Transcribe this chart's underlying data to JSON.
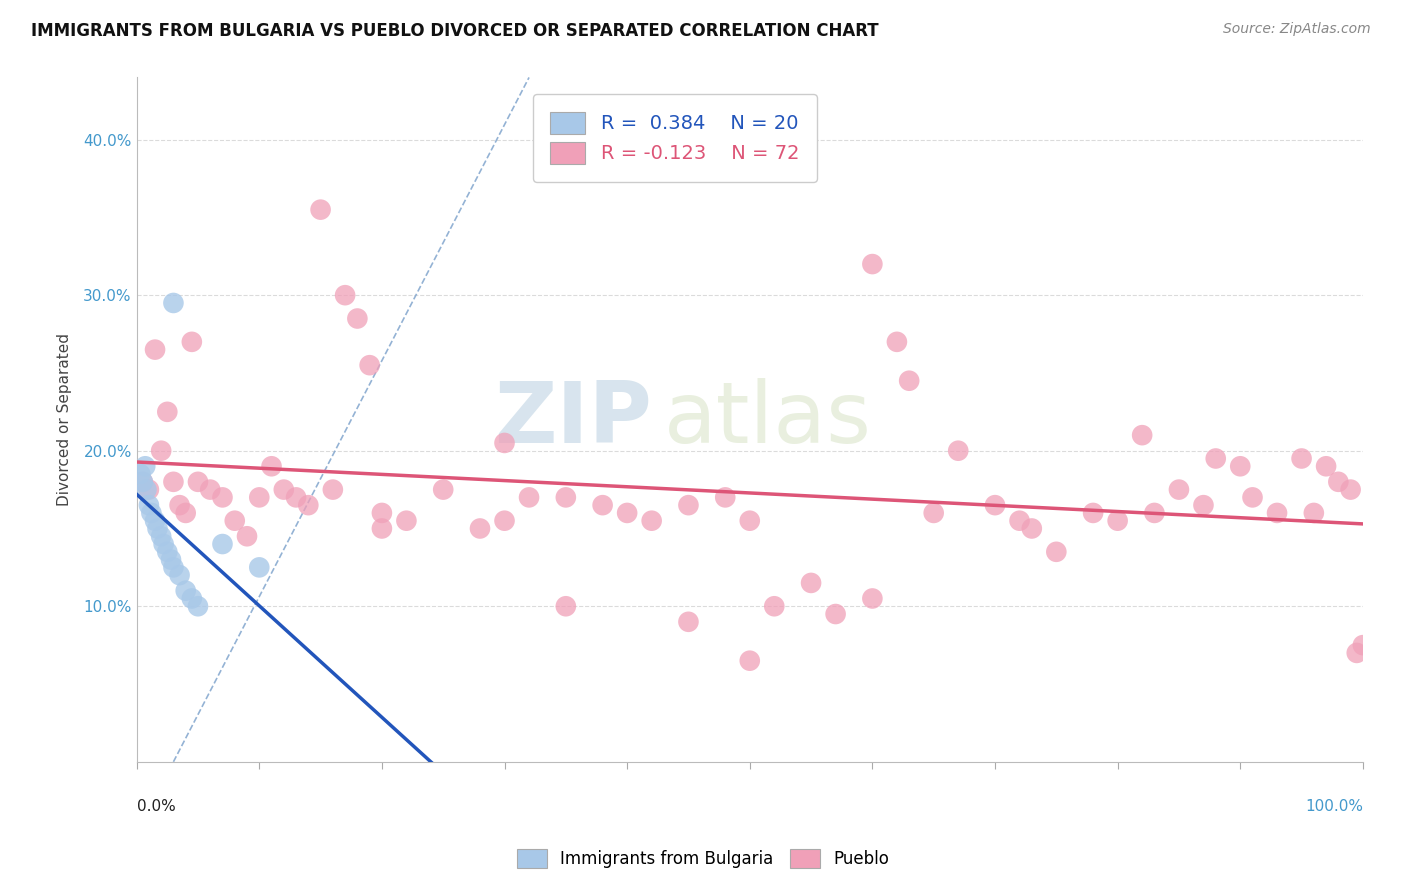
{
  "title": "IMMIGRANTS FROM BULGARIA VS PUEBLO DIVORCED OR SEPARATED CORRELATION CHART",
  "source_text": "Source: ZipAtlas.com",
  "ylabel": "Divorced or Separated",
  "legend_label1": "Immigrants from Bulgaria",
  "legend_label2": "Pueblo",
  "r1": 0.384,
  "n1": 20,
  "r2": -0.123,
  "n2": 72,
  "blue_color": "#a8c8e8",
  "pink_color": "#f0a0b8",
  "blue_line_color": "#2255bb",
  "pink_line_color": "#dd5577",
  "diag_line_color": "#88aad0",
  "bg_color": "#ffffff",
  "grid_color": "#cccccc",
  "watermark_zip": "ZIP",
  "watermark_atlas": "atlas",
  "xlim": [
    0,
    100
  ],
  "ylim": [
    0,
    44
  ],
  "y_ticks": [
    10,
    20,
    30,
    40
  ],
  "blue_points": [
    [
      0.3,
      18.5
    ],
    [
      0.5,
      18.0
    ],
    [
      0.7,
      19.0
    ],
    [
      0.8,
      17.5
    ],
    [
      1.0,
      16.5
    ],
    [
      1.2,
      16.0
    ],
    [
      1.5,
      15.5
    ],
    [
      1.7,
      15.0
    ],
    [
      2.0,
      14.5
    ],
    [
      2.2,
      14.0
    ],
    [
      2.5,
      13.5
    ],
    [
      2.8,
      13.0
    ],
    [
      3.0,
      12.5
    ],
    [
      3.5,
      12.0
    ],
    [
      4.0,
      11.0
    ],
    [
      4.5,
      10.5
    ],
    [
      5.0,
      10.0
    ],
    [
      7.0,
      14.0
    ],
    [
      10.0,
      12.5
    ],
    [
      3.0,
      29.5
    ]
  ],
  "pink_points": [
    [
      0.5,
      18.0
    ],
    [
      1.0,
      17.5
    ],
    [
      1.5,
      26.5
    ],
    [
      2.0,
      20.0
    ],
    [
      2.5,
      22.5
    ],
    [
      3.0,
      18.0
    ],
    [
      3.5,
      16.5
    ],
    [
      4.0,
      16.0
    ],
    [
      4.5,
      27.0
    ],
    [
      5.0,
      18.0
    ],
    [
      6.0,
      17.5
    ],
    [
      7.0,
      17.0
    ],
    [
      8.0,
      15.5
    ],
    [
      9.0,
      14.5
    ],
    [
      10.0,
      17.0
    ],
    [
      11.0,
      19.0
    ],
    [
      12.0,
      17.5
    ],
    [
      13.0,
      17.0
    ],
    [
      14.0,
      16.5
    ],
    [
      15.0,
      35.5
    ],
    [
      16.0,
      17.5
    ],
    [
      17.0,
      30.0
    ],
    [
      18.0,
      28.5
    ],
    [
      19.0,
      25.5
    ],
    [
      20.0,
      16.0
    ],
    [
      22.0,
      15.5
    ],
    [
      25.0,
      17.5
    ],
    [
      28.0,
      15.0
    ],
    [
      30.0,
      20.5
    ],
    [
      32.0,
      17.0
    ],
    [
      35.0,
      17.0
    ],
    [
      38.0,
      16.5
    ],
    [
      40.0,
      16.0
    ],
    [
      42.0,
      15.5
    ],
    [
      45.0,
      16.5
    ],
    [
      48.0,
      17.0
    ],
    [
      50.0,
      15.5
    ],
    [
      52.0,
      10.0
    ],
    [
      55.0,
      11.5
    ],
    [
      57.0,
      9.5
    ],
    [
      60.0,
      32.0
    ],
    [
      62.0,
      27.0
    ],
    [
      63.0,
      24.5
    ],
    [
      65.0,
      16.0
    ],
    [
      67.0,
      20.0
    ],
    [
      70.0,
      16.5
    ],
    [
      72.0,
      15.5
    ],
    [
      73.0,
      15.0
    ],
    [
      75.0,
      13.5
    ],
    [
      78.0,
      16.0
    ],
    [
      80.0,
      15.5
    ],
    [
      82.0,
      21.0
    ],
    [
      83.0,
      16.0
    ],
    [
      85.0,
      17.5
    ],
    [
      87.0,
      16.5
    ],
    [
      88.0,
      19.5
    ],
    [
      90.0,
      19.0
    ],
    [
      91.0,
      17.0
    ],
    [
      93.0,
      16.0
    ],
    [
      95.0,
      19.5
    ],
    [
      96.0,
      16.0
    ],
    [
      97.0,
      19.0
    ],
    [
      98.0,
      18.0
    ],
    [
      99.0,
      17.5
    ],
    [
      100.0,
      7.5
    ],
    [
      99.5,
      7.0
    ],
    [
      50.0,
      6.5
    ],
    [
      45.0,
      9.0
    ],
    [
      60.0,
      10.5
    ],
    [
      35.0,
      10.0
    ],
    [
      20.0,
      15.0
    ],
    [
      30.0,
      15.5
    ]
  ]
}
